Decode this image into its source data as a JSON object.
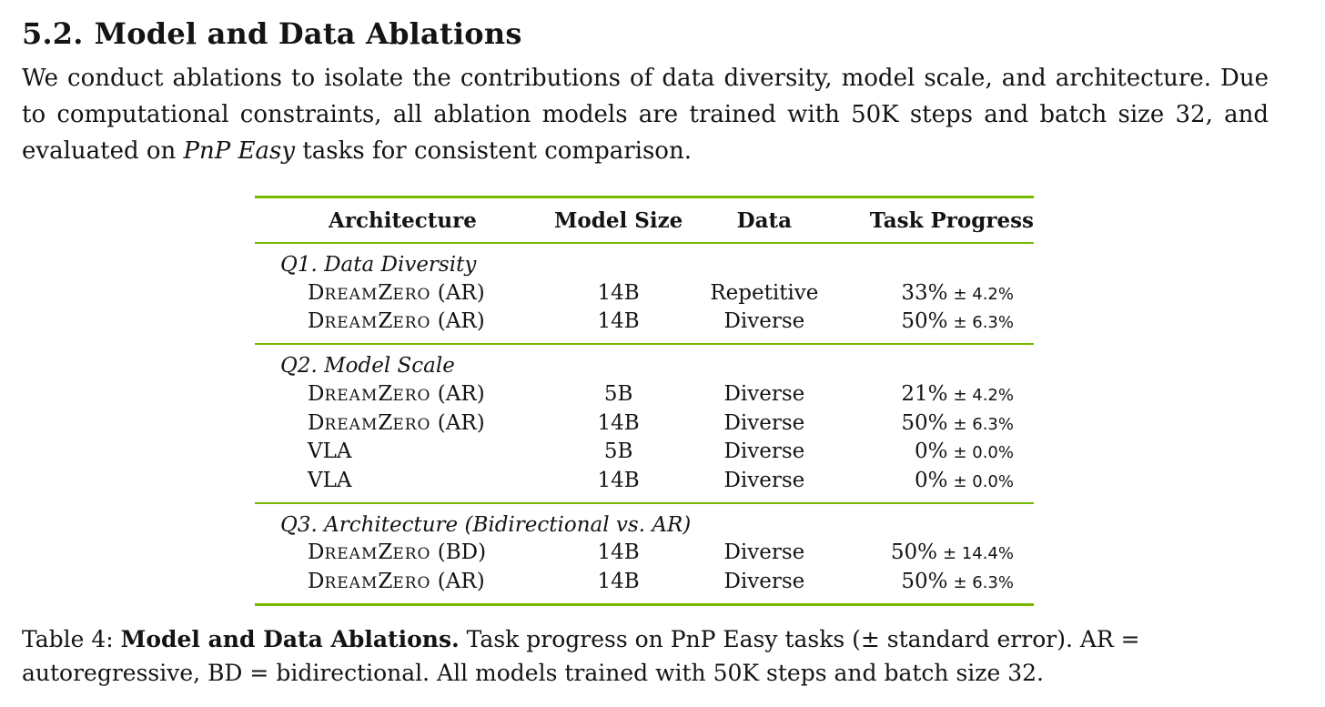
{
  "section": {
    "number": "5.2.",
    "title": "Model and Data Ablations"
  },
  "paragraph": {
    "text_before": "We conduct ablations to isolate the contributions of data diversity, model scale, and architecture.  Due to computational constraints, all ablation models are trained with 50K steps and batch size 32, and evaluated on ",
    "emphasis": "PnP Easy",
    "text_after": " tasks for consistent comparison."
  },
  "table": {
    "headers": [
      "Architecture",
      "Model Size",
      "Data",
      "Task Progress"
    ],
    "groups": [
      {
        "label": "Q1. Data Diversity",
        "rows": [
          {
            "arch_cap1": "D",
            "arch_small1": "REAM",
            "arch_cap2": "Z",
            "arch_small2": "ERO",
            "arch_suffix": " (AR)",
            "size": "14B",
            "data": "Repetitive",
            "progress": "33%",
            "stderr": "± 4.2%"
          },
          {
            "arch_cap1": "D",
            "arch_small1": "REAM",
            "arch_cap2": "Z",
            "arch_small2": "ERO",
            "arch_suffix": " (AR)",
            "size": "14B",
            "data": "Diverse",
            "progress": "50%",
            "stderr": "± 6.3%"
          }
        ]
      },
      {
        "label": "Q2. Model Scale",
        "rows": [
          {
            "arch_cap1": "D",
            "arch_small1": "REAM",
            "arch_cap2": "Z",
            "arch_small2": "ERO",
            "arch_suffix": " (AR)",
            "size": "5B",
            "data": "Diverse",
            "progress": "21%",
            "stderr": "± 4.2%"
          },
          {
            "arch_cap1": "D",
            "arch_small1": "REAM",
            "arch_cap2": "Z",
            "arch_small2": "ERO",
            "arch_suffix": " (AR)",
            "size": "14B",
            "data": "Diverse",
            "progress": "50%",
            "stderr": "± 6.3%"
          },
          {
            "arch_plain": "VLA",
            "size": "5B",
            "data": "Diverse",
            "progress": "0%",
            "stderr": "± 0.0%"
          },
          {
            "arch_plain": "VLA",
            "size": "14B",
            "data": "Diverse",
            "progress": "0%",
            "stderr": "± 0.0%"
          }
        ]
      },
      {
        "label": "Q3. Architecture (Bidirectional vs. AR)",
        "rows": [
          {
            "arch_cap1": "D",
            "arch_small1": "REAM",
            "arch_cap2": "Z",
            "arch_small2": "ERO",
            "arch_suffix": " (BD)",
            "size": "14B",
            "data": "Diverse",
            "progress": "50%",
            "stderr": "± 14.4%"
          },
          {
            "arch_cap1": "D",
            "arch_small1": "REAM",
            "arch_cap2": "Z",
            "arch_small2": "ERO",
            "arch_suffix": " (AR)",
            "size": "14B",
            "data": "Diverse",
            "progress": "50%",
            "stderr": "± 6.3%"
          }
        ]
      }
    ],
    "rule_color": "#76b900"
  },
  "caption": {
    "label": "Table 4: ",
    "bold": "Model and Data Ablations.",
    "text": " Task progress on PnP Easy tasks (± standard error). AR = autoregressive, BD = bidirectional. All models trained with 50K steps and batch size 32."
  }
}
